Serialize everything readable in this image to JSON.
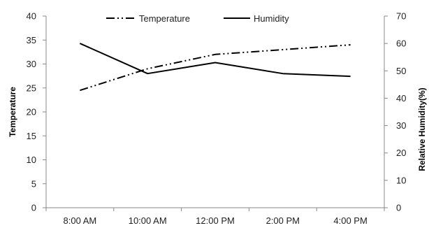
{
  "chart_data": {
    "type": "line",
    "categories": [
      "8:00 AM",
      "10:00 AM",
      "12:00 PM",
      "2:00 PM",
      "4:00 PM"
    ],
    "series": [
      {
        "name": "Temperature",
        "axis": "left",
        "line_style": "dash-dot-dot",
        "values": [
          24.5,
          29,
          32,
          33,
          34
        ]
      },
      {
        "name": "Humidity",
        "axis": "right",
        "line_style": "solid",
        "values": [
          60,
          49,
          53,
          49,
          48
        ]
      }
    ],
    "ylabel_left": "Temperature",
    "ylabel_right": "Relative Humidity(%)",
    "ylim_left": [
      0,
      40
    ],
    "ylim_right": [
      0,
      70
    ],
    "yticks_left": [
      0,
      5,
      10,
      15,
      20,
      25,
      30,
      35,
      40
    ],
    "yticks_right": [
      0,
      10,
      20,
      30,
      40,
      50,
      60,
      70
    ],
    "grid": false,
    "legend_position": "top-center",
    "colors": {
      "line": "#000000",
      "axis": "#888888",
      "text": "#222222"
    }
  }
}
